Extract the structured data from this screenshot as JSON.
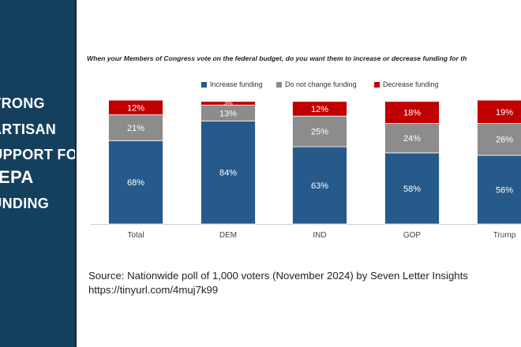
{
  "sidebar": {
    "lines": [
      "STRONG",
      "PARTISAN",
      "SUPPORT FOR",
      "EPA",
      "FUNDING"
    ],
    "background": "#15405d"
  },
  "chart_data": {
    "type": "bar",
    "stacked": true,
    "title": "When your Members of Congress vote on the federal budget, do you want them to increase or decrease funding for th",
    "categories": [
      "Total",
      "DEM",
      "IND",
      "GOP",
      "Trump"
    ],
    "series": [
      {
        "name": "Increase funding",
        "values": [
          68,
          84,
          63,
          58,
          56
        ],
        "labels": [
          "68%",
          "84%",
          "63%",
          "58%",
          "56%"
        ],
        "color": "#265a8a"
      },
      {
        "name": "Do not change funding",
        "values": [
          21,
          13,
          25,
          24,
          26
        ],
        "labels": [
          "21%",
          "13%",
          "25%",
          "24%",
          "26%"
        ],
        "color": "#8c8c8c"
      },
      {
        "name": "Decrease funding",
        "values": [
          12,
          3,
          12,
          18,
          19
        ],
        "labels": [
          "12%",
          "3%",
          "12%",
          "18%",
          "19%"
        ],
        "color": "#c00000"
      }
    ],
    "ylim": [
      0,
      100
    ],
    "grid": false,
    "legend_position": "top"
  },
  "source": {
    "line1": "Source: Nationwide poll of 1,000 voters (November 2024) by Seven Letter Insights",
    "line2": "https://tinyurl.com/4muj7k99"
  }
}
